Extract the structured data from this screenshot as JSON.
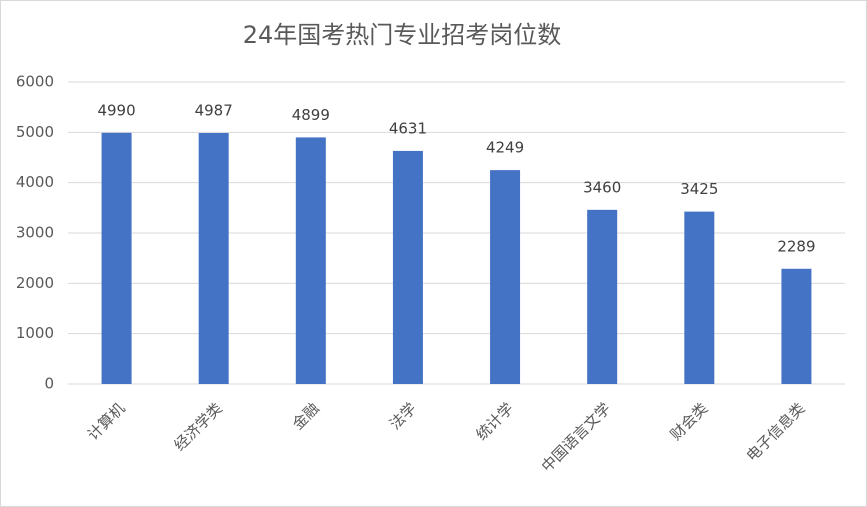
{
  "chart_data": {
    "type": "bar",
    "title": "24年国考热门专业招考岗位数",
    "categories": [
      "计算机",
      "经济学类",
      "金融",
      "法学",
      "统计学",
      "中国语言文学",
      "财会类",
      "电子信息类"
    ],
    "values": [
      4990,
      4987,
      4899,
      4631,
      4249,
      3460,
      3425,
      2289
    ],
    "color": "#4472c4",
    "ylim": [
      0,
      6000
    ],
    "yticks": [
      0,
      1000,
      2000,
      3000,
      4000,
      5000,
      6000
    ],
    "grid": true
  }
}
